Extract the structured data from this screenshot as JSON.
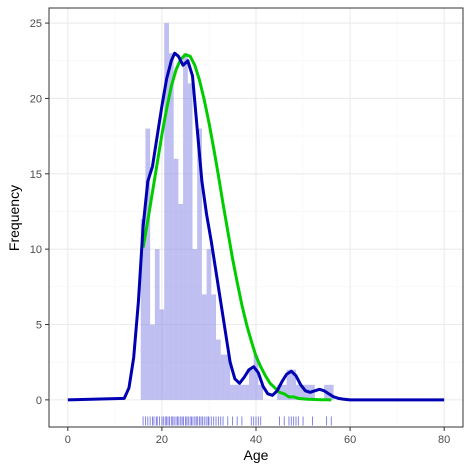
{
  "chart_data": {
    "type": "bar",
    "xlabel": "Age",
    "ylabel": "Frequency",
    "xlim": [
      -4,
      84
    ],
    "ylim": [
      -1.8,
      26
    ],
    "xticks": [
      0,
      20,
      40,
      60,
      80
    ],
    "yticks": [
      0,
      5,
      10,
      15,
      20,
      25
    ],
    "grid": true,
    "colors": {
      "bars": "#8a8ae6",
      "bar_opacity": 0.55,
      "density_line": "#0000b3",
      "normal_line": "#00cc00",
      "rug": "#4d4dd6",
      "grid_major": "#ebebeb",
      "grid_minor": "#f5f5f5",
      "frame": "#333333"
    },
    "histogram": {
      "bin_width": 1,
      "bins": [
        {
          "x": 16,
          "count": 12
        },
        {
          "x": 17,
          "count": 18
        },
        {
          "x": 18,
          "count": 5
        },
        {
          "x": 19,
          "count": 10
        },
        {
          "x": 20,
          "count": 6
        },
        {
          "x": 21,
          "count": 25
        },
        {
          "x": 22,
          "count": 23
        },
        {
          "x": 23,
          "count": 16
        },
        {
          "x": 24,
          "count": 13
        },
        {
          "x": 25,
          "count": 23
        },
        {
          "x": 26,
          "count": 21
        },
        {
          "x": 27,
          "count": 10
        },
        {
          "x": 28,
          "count": 18
        },
        {
          "x": 29,
          "count": 7
        },
        {
          "x": 30,
          "count": 10
        },
        {
          "x": 31,
          "count": 7
        },
        {
          "x": 32,
          "count": 4
        },
        {
          "x": 33,
          "count": 3
        },
        {
          "x": 34,
          "count": 3
        },
        {
          "x": 35,
          "count": 1
        },
        {
          "x": 36,
          "count": 1
        },
        {
          "x": 37,
          "count": 1
        },
        {
          "x": 38,
          "count": 1
        },
        {
          "x": 39,
          "count": 2
        },
        {
          "x": 40,
          "count": 3
        },
        {
          "x": 41,
          "count": 1
        },
        {
          "x": 45,
          "count": 1
        },
        {
          "x": 46,
          "count": 1
        },
        {
          "x": 47,
          "count": 2
        },
        {
          "x": 48,
          "count": 2
        },
        {
          "x": 49,
          "count": 1
        },
        {
          "x": 50,
          "count": 1
        },
        {
          "x": 51,
          "count": 1
        },
        {
          "x": 52,
          "count": 1
        },
        {
          "x": 55,
          "count": 1
        },
        {
          "x": 56,
          "count": 1
        }
      ]
    },
    "density_curve": {
      "x": [
        0,
        12,
        13,
        14,
        15,
        16,
        17,
        18,
        19,
        20,
        21,
        22,
        22.7,
        23.5,
        24.5,
        25.5,
        26.5,
        27.5,
        28.5,
        29.5,
        30.5,
        31.5,
        32.5,
        33.5,
        34.5,
        35.5,
        36.5,
        37.5,
        38.5,
        39.5,
        40.5,
        41.5,
        42.5,
        43.5,
        44.5,
        45.5,
        46.5,
        47.5,
        48.5,
        49.5,
        50.5,
        51.5,
        52.5,
        53.5,
        54.5,
        55.5,
        56.5,
        57.5,
        58.5,
        60,
        62,
        80
      ],
      "y": [
        0,
        0.1,
        0.8,
        2.8,
        6.5,
        11.5,
        14.5,
        15.5,
        17.5,
        19.5,
        21.3,
        22.5,
        23.0,
        22.8,
        22.2,
        22.5,
        21.5,
        18.0,
        14.5,
        12.3,
        10.5,
        8.5,
        6.5,
        4.5,
        2.5,
        1.4,
        1.1,
        1.5,
        2.0,
        2.2,
        1.8,
        0.9,
        0.4,
        0.3,
        0.6,
        1.2,
        1.7,
        1.9,
        1.6,
        1.0,
        0.6,
        0.5,
        0.6,
        0.7,
        0.6,
        0.4,
        0.2,
        0.1,
        0.05,
        0,
        0,
        0
      ]
    },
    "normal_curve": {
      "x": [
        16,
        17,
        18,
        19,
        20,
        21,
        22,
        23,
        24,
        25,
        26,
        27,
        28,
        29,
        30,
        31,
        32,
        33,
        34,
        35,
        36,
        37,
        38,
        39,
        40,
        41,
        42,
        43,
        44,
        45,
        46,
        47,
        48,
        49,
        50,
        51,
        52,
        53,
        54,
        55,
        56
      ],
      "y": [
        10.1,
        11.9,
        13.8,
        15.7,
        17.6,
        19.3,
        20.8,
        21.9,
        22.6,
        22.9,
        22.8,
        22.2,
        21.2,
        19.9,
        18.4,
        16.7,
        14.9,
        13.0,
        11.2,
        9.4,
        7.8,
        6.3,
        5.0,
        3.9,
        2.9,
        2.2,
        1.6,
        1.1,
        0.8,
        0.5,
        0.4,
        0.2,
        0.2,
        0.1,
        0.07,
        0.04,
        0.03,
        0.02,
        0.01,
        0.01,
        0.0
      ]
    },
    "rug": [
      16,
      16.5,
      17,
      17.5,
      18,
      18.3,
      18.8,
      19,
      19.5,
      20,
      20.3,
      20.7,
      21,
      21.3,
      21.6,
      22,
      22.3,
      22.6,
      23,
      23.3,
      23.6,
      24,
      24.3,
      24.6,
      25,
      25.3,
      25.6,
      26,
      26.3,
      26.6,
      27,
      27.3,
      27.6,
      28,
      28.3,
      28.6,
      29,
      29.4,
      29.8,
      30,
      30.5,
      31,
      31.5,
      32,
      32.5,
      33,
      34,
      35,
      36,
      37,
      39,
      39.5,
      40,
      40.5,
      41,
      45,
      46,
      47,
      47.5,
      48,
      48.5,
      49,
      50,
      52,
      55,
      56
    ]
  }
}
